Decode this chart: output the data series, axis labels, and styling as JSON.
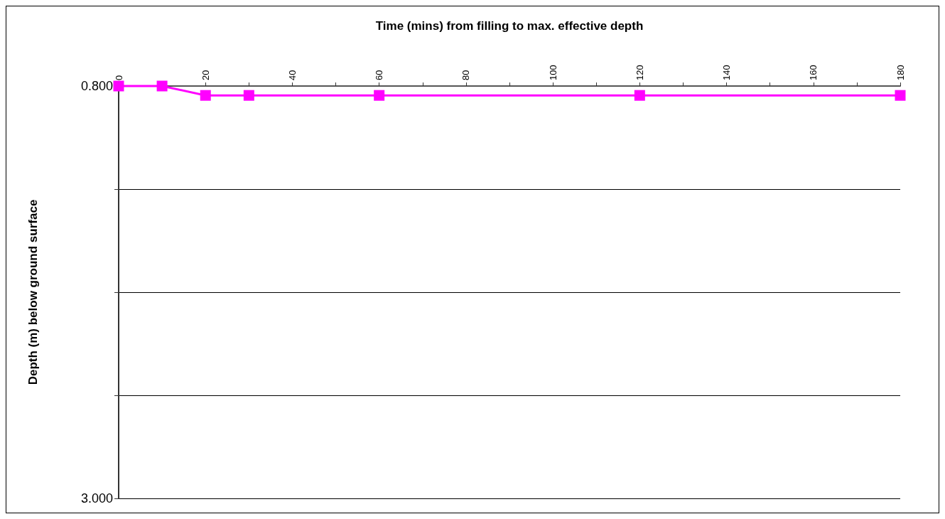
{
  "chart_data": {
    "type": "line",
    "xlabel": "Time (mins) from filling to max. effective depth",
    "ylabel": "Depth (m) below ground surface",
    "x": [
      0,
      10,
      20,
      30,
      60,
      120,
      180
    ],
    "series": [
      {
        "color": "#ff00ff",
        "values": [
          0.8,
          0.8,
          0.85,
          0.85,
          0.85,
          0.85,
          0.85
        ]
      }
    ],
    "xlim": [
      0,
      180
    ],
    "xticks": [
      0,
      {
        "value": 10,
        "label": null
      },
      20,
      {
        "value": 30,
        "label": null
      },
      40,
      {
        "value": 50,
        "label": null
      },
      60,
      {
        "value": 70,
        "label": null
      },
      80,
      {
        "value": 90,
        "label": null
      },
      100,
      {
        "value": 110,
        "label": null
      },
      120,
      {
        "value": 130,
        "label": null
      },
      140,
      {
        "value": 150,
        "label": null
      },
      160,
      {
        "value": 170,
        "label": null
      },
      180
    ],
    "ylim": [
      3.0,
      0.8
    ],
    "yticks": [
      {
        "value": 0.8,
        "label": "0.800"
      },
      {
        "value": 1.35,
        "label": null
      },
      {
        "value": 1.9,
        "label": null
      },
      {
        "value": 2.45,
        "label": null
      },
      {
        "value": 3.0,
        "label": "3.000"
      }
    ],
    "grid": "y",
    "marker": "square",
    "line_style": "solid"
  }
}
